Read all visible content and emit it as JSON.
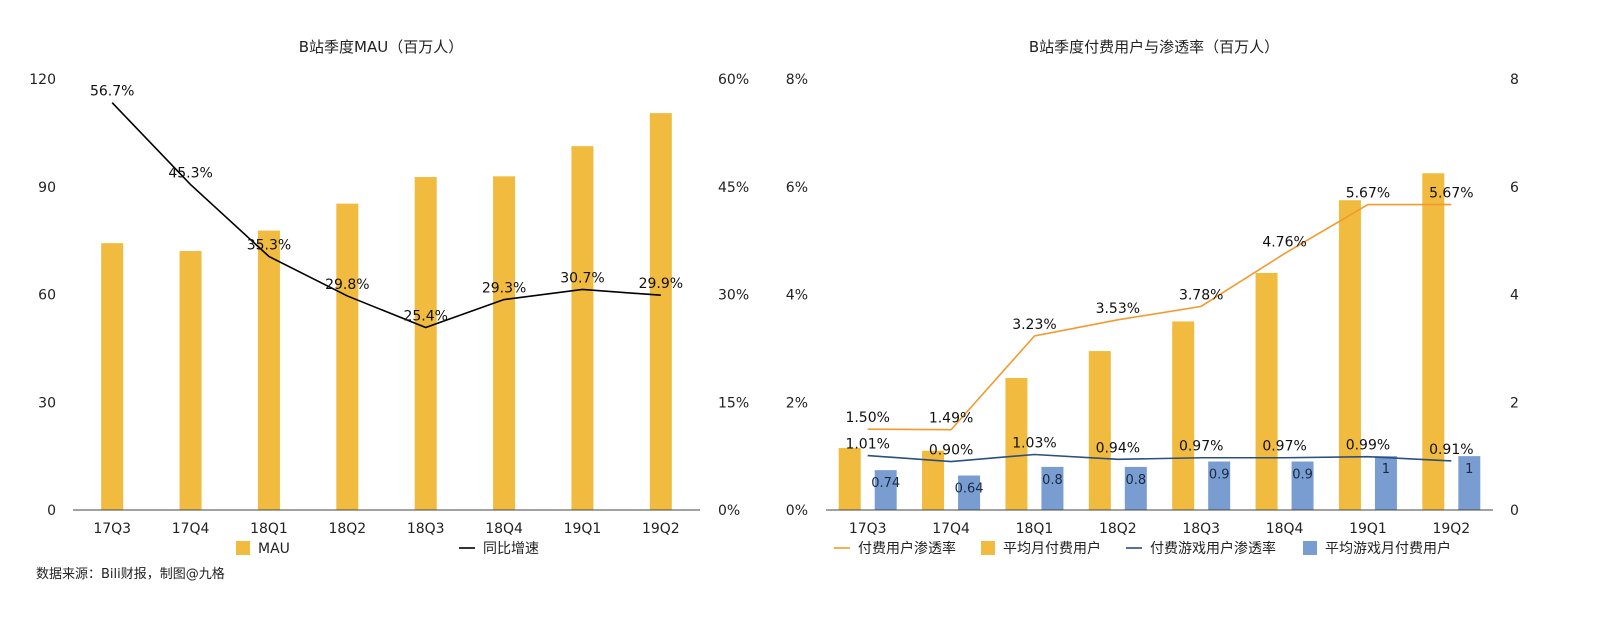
{
  "source_note": "数据来源：Bili财报，制图@九格",
  "chart_data": [
    {
      "type": "bar",
      "title": "B站季度MAU（百万人）",
      "categories": [
        "17Q3",
        "17Q4",
        "18Q1",
        "18Q2",
        "18Q3",
        "18Q4",
        "19Q1",
        "19Q2"
      ],
      "y_left": {
        "ylim": [
          0,
          120
        ],
        "ticks": [
          "0",
          "30",
          "60",
          "90",
          "120"
        ]
      },
      "y_right": {
        "ylim": [
          0,
          60
        ],
        "ticks": [
          "0%",
          "15%",
          "30%",
          "45%",
          "60%"
        ]
      },
      "series": [
        {
          "name": "MAU",
          "kind": "bar",
          "axis": "left",
          "color": "#F0BB3F",
          "values": [
            74.3,
            72.1,
            77.8,
            85.3,
            92.7,
            92.9,
            101.3,
            110.5
          ]
        },
        {
          "name": "同比增速",
          "kind": "line",
          "axis": "right",
          "color": "#000000",
          "values": [
            56.7,
            45.3,
            35.3,
            29.8,
            25.4,
            29.3,
            30.7,
            29.9
          ],
          "labels": [
            "56.7%",
            "45.3%",
            "35.3%",
            "29.8%",
            "25.4%",
            "29.3%",
            "30.7%",
            "29.9%"
          ]
        }
      ],
      "legend": {
        "position": "bottom",
        "items": [
          "MAU",
          "同比增速"
        ]
      },
      "grid": false
    },
    {
      "type": "bar",
      "title": "B站季度付费用户与渗透率（百万人）",
      "categories": [
        "17Q3",
        "17Q4",
        "18Q1",
        "18Q2",
        "18Q3",
        "18Q4",
        "19Q1",
        "19Q2"
      ],
      "y_left": {
        "ylim": [
          0,
          8
        ],
        "ticks": [
          "0%",
          "2%",
          "4%",
          "6%",
          "8%"
        ]
      },
      "y_right": {
        "ylim": [
          0,
          8
        ],
        "ticks": [
          "0",
          "2",
          "4",
          "6",
          "8"
        ]
      },
      "series": [
        {
          "name": "付费用户渗透率",
          "kind": "line",
          "axis": "left",
          "color": "#F39A2D",
          "values": [
            1.5,
            1.49,
            3.23,
            3.53,
            3.78,
            4.76,
            5.67,
            5.67
          ],
          "labels": [
            "1.50%",
            "1.49%",
            "3.23%",
            "3.53%",
            "3.78%",
            "4.76%",
            "5.67%",
            "5.67%"
          ]
        },
        {
          "name": "平均月付费用户",
          "kind": "bar",
          "axis": "right",
          "color": "#F0BB3F",
          "values": [
            1.15,
            1.1,
            2.45,
            2.95,
            3.5,
            4.4,
            5.75,
            6.25
          ]
        },
        {
          "name": "付费游戏用户渗透率",
          "kind": "line",
          "axis": "left",
          "color": "#2B4F7E",
          "values": [
            1.01,
            0.9,
            1.03,
            0.94,
            0.97,
            0.97,
            0.99,
            0.91
          ],
          "labels": [
            "1.01%",
            "0.90%",
            "1.03%",
            "0.94%",
            "0.97%",
            "0.97%",
            "0.99%",
            "0.91%"
          ]
        },
        {
          "name": "平均游戏月付费用户",
          "kind": "bar",
          "axis": "right",
          "color": "#7A9DD1",
          "values": [
            0.74,
            0.64,
            0.8,
            0.8,
            0.9,
            0.9,
            1,
            1
          ],
          "labels": [
            "0.74",
            "0.64",
            "0.8",
            "0.8",
            "0.9",
            "0.9",
            "1",
            "1"
          ]
        }
      ],
      "legend": {
        "position": "bottom",
        "items": [
          "付费用户渗透率",
          "平均月付费用户",
          "付费游戏用户渗透率",
          "平均游戏月付费用户"
        ]
      },
      "grid": false
    }
  ]
}
